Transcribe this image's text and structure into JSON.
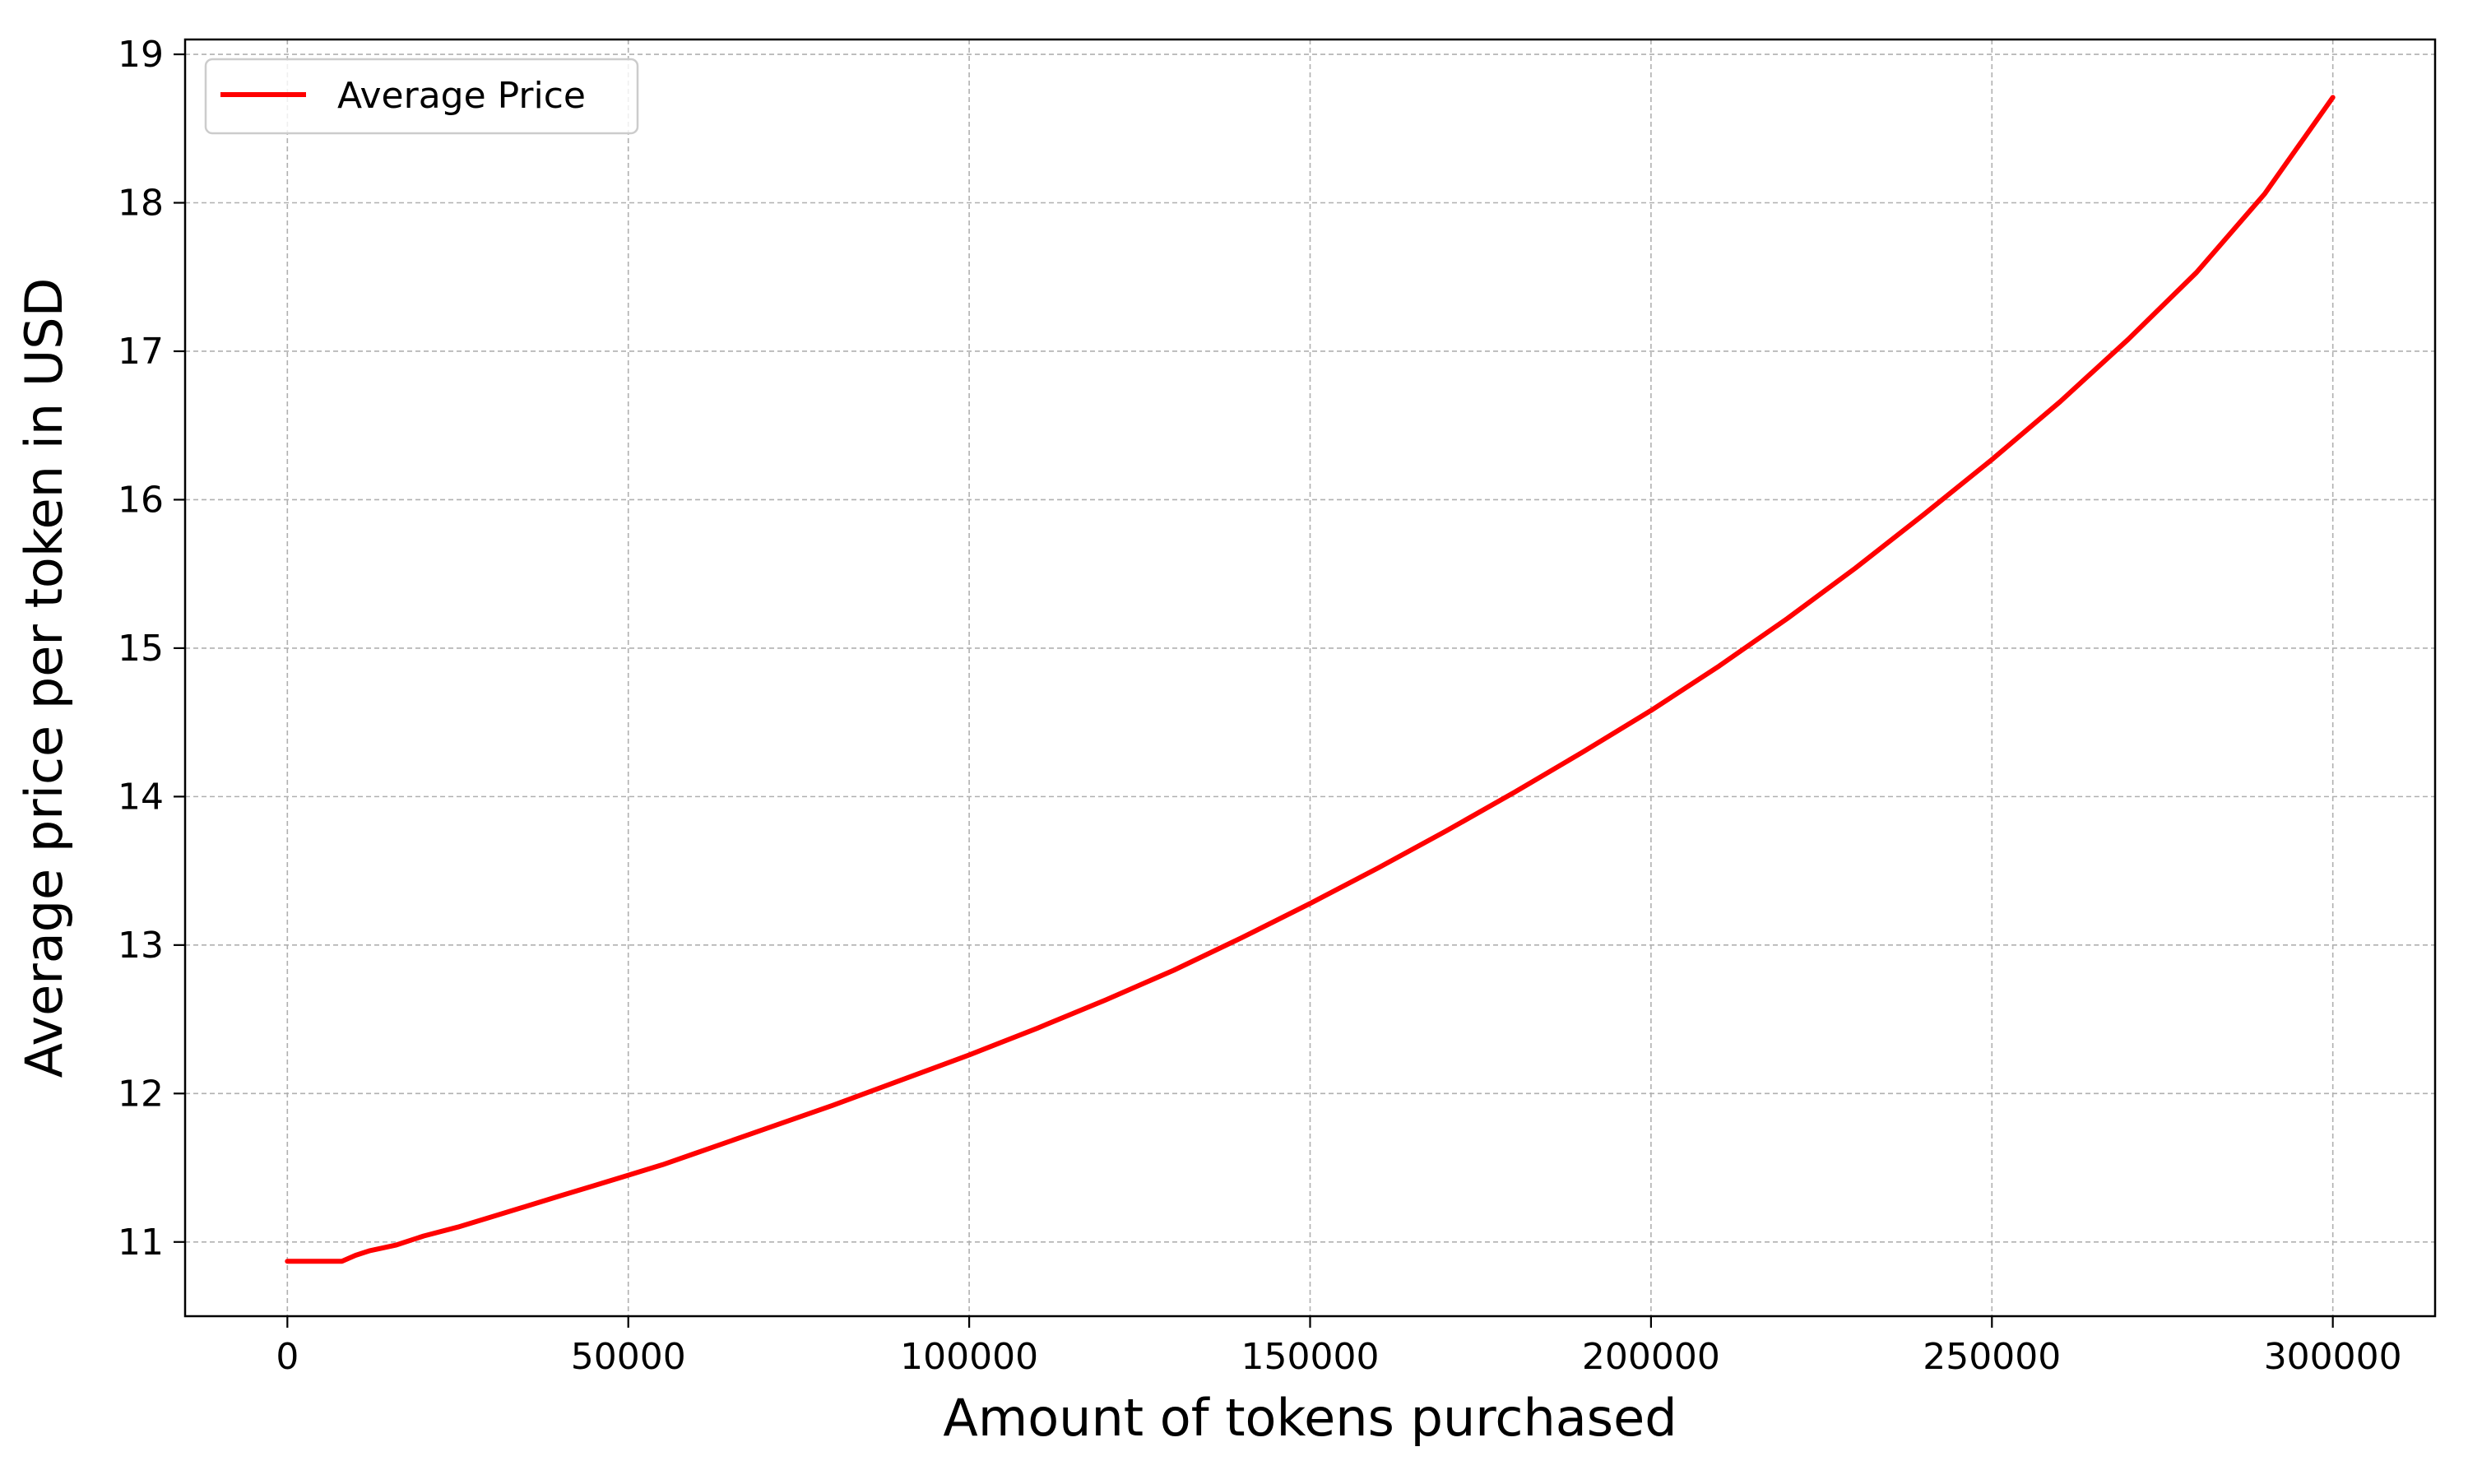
{
  "chart_data": {
    "type": "line",
    "title": "",
    "xlabel": "Amount of tokens purchased",
    "ylabel": "Average price per token in USD",
    "xlim": [
      -15000,
      315000
    ],
    "ylim": [
      10.5,
      19.1
    ],
    "x_ticks": [
      0,
      50000,
      100000,
      150000,
      200000,
      250000,
      300000
    ],
    "x_tick_labels": [
      "0",
      "50000",
      "100000",
      "150000",
      "200000",
      "250000",
      "300000"
    ],
    "y_ticks": [
      11,
      12,
      13,
      14,
      15,
      16,
      17,
      18,
      19
    ],
    "y_tick_labels": [
      "11",
      "12",
      "13",
      "14",
      "15",
      "16",
      "17",
      "18",
      "19"
    ],
    "grid": true,
    "legend": {
      "placement": "top-left",
      "entries": [
        "Average Price"
      ]
    },
    "series": [
      {
        "name": "Average Price",
        "color": "#ff0000",
        "x": [
          0,
          4000,
          8000,
          10000,
          12000,
          16000,
          20000,
          25000,
          30000,
          35000,
          40000,
          45000,
          50000,
          55000,
          60000,
          70000,
          80000,
          90000,
          100000,
          110000,
          120000,
          130000,
          140000,
          150000,
          160000,
          170000,
          180000,
          190000,
          200000,
          210000,
          220000,
          230000,
          240000,
          250000,
          260000,
          270000,
          280000,
          290000,
          300000
        ],
        "y": [
          10.87,
          10.87,
          10.87,
          10.91,
          10.94,
          10.98,
          11.04,
          11.1,
          11.17,
          11.24,
          11.31,
          11.38,
          11.45,
          11.52,
          11.6,
          11.76,
          11.92,
          12.09,
          12.26,
          12.44,
          12.63,
          12.83,
          13.05,
          13.28,
          13.52,
          13.77,
          14.03,
          14.3,
          14.58,
          14.88,
          15.2,
          15.54,
          15.9,
          16.27,
          16.66,
          17.08,
          17.53,
          18.06,
          18.71
        ]
      }
    ]
  }
}
